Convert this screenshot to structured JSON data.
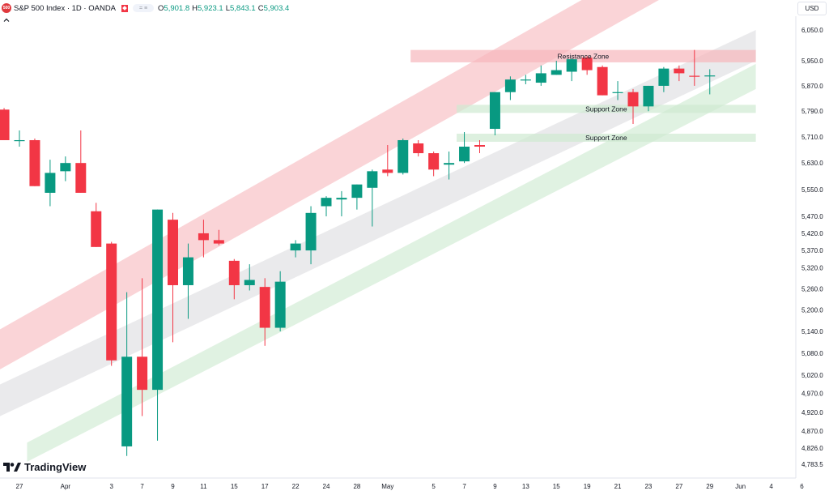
{
  "header": {
    "symbol_icon_text": "500",
    "title": "S&P 500 Index · 1D · OANDA",
    "ohlc": [
      {
        "k": "O",
        "v": "5,901.8"
      },
      {
        "k": "H",
        "v": "5,923.1"
      },
      {
        "k": "L",
        "v": "5,843.1"
      },
      {
        "k": "C",
        "v": "5,903.4"
      }
    ],
    "currency": "USD",
    "logo_text": "TradingView"
  },
  "colors": {
    "up": "#089981",
    "down": "#f23645",
    "resistance": "#f7b7bc",
    "support": "#cfe9d1",
    "channel_red": "#f8c6ca",
    "channel_gray": "#e3e3e5",
    "channel_green": "#d6eed8"
  },
  "chart_data": {
    "type": "candlestick",
    "title": "S&P 500 Index · 1D · OANDA",
    "y_axis": {
      "ticks": [
        6050.0,
        5950.0,
        5870.0,
        5790.0,
        5710.0,
        5630.0,
        5550.0,
        5470.0,
        5420.0,
        5370.0,
        5320.0,
        5260.0,
        5200.0,
        5140.0,
        5080.0,
        5020.0,
        4970.0,
        4920.0,
        4870.0,
        4826.0,
        4783.5
      ],
      "tick_labels": [
        "6,050.0",
        "5,950.0",
        "5,870.0",
        "5,790.0",
        "5,710.0",
        "5,630.0",
        "5,550.0",
        "5,470.0",
        "5,420.0",
        "5,370.0",
        "5,320.0",
        "5,260.0",
        "5,200.0",
        "5,140.0",
        "5,080.0",
        "5,020.0",
        "4,970.0",
        "4,920.0",
        "4,870.0",
        "4,826.0",
        "4,783.5"
      ],
      "scale": "log"
    },
    "x_axis": {
      "labels": [
        "27",
        "Apr",
        "3",
        "7",
        "9",
        "11",
        "15",
        "17",
        "22",
        "24",
        "28",
        "May",
        "5",
        "7",
        "9",
        "13",
        "15",
        "19",
        "21",
        "23",
        "27",
        "29",
        "Jun",
        "4",
        "6"
      ],
      "label_slots": [
        0,
        3,
        6,
        8,
        10,
        12,
        14,
        16,
        18,
        20,
        22,
        24,
        27,
        29,
        31,
        33,
        35,
        37,
        39,
        41,
        43,
        45,
        47,
        49,
        51
      ]
    },
    "candles": [
      {
        "slot": -1,
        "o": 5795,
        "h": 5800,
        "l": 5700,
        "c": 5700
      },
      {
        "slot": 0,
        "o": 5700,
        "h": 5730,
        "l": 5680,
        "c": 5700
      },
      {
        "slot": 1,
        "o": 5700,
        "h": 5705,
        "l": 5560,
        "c": 5560
      },
      {
        "slot": 2,
        "o": 5540,
        "h": 5640,
        "l": 5500,
        "c": 5600
      },
      {
        "slot": 3,
        "o": 5605,
        "h": 5650,
        "l": 5575,
        "c": 5630
      },
      {
        "slot": 4,
        "o": 5630,
        "h": 5730,
        "l": 5540,
        "c": 5540
      },
      {
        "slot": 5,
        "o": 5485,
        "h": 5510,
        "l": 5380,
        "c": 5380
      },
      {
        "slot": 6,
        "o": 5390,
        "h": 5395,
        "l": 5045,
        "c": 5060
      },
      {
        "slot": 7,
        "o": 4830,
        "h": 5250,
        "l": 4805,
        "c": 5070
      },
      {
        "slot": 8,
        "o": 5070,
        "h": 5290,
        "l": 4910,
        "c": 4980
      },
      {
        "slot": 9,
        "o": 4980,
        "h": 5490,
        "l": 4845,
        "c": 5490
      },
      {
        "slot": 10,
        "o": 5460,
        "h": 5480,
        "l": 5110,
        "c": 5270
      },
      {
        "slot": 11,
        "o": 5270,
        "h": 5390,
        "l": 5175,
        "c": 5350
      },
      {
        "slot": 12,
        "o": 5420,
        "h": 5460,
        "l": 5350,
        "c": 5400
      },
      {
        "slot": 13,
        "o": 5400,
        "h": 5430,
        "l": 5385,
        "c": 5390
      },
      {
        "slot": 14,
        "o": 5340,
        "h": 5345,
        "l": 5230,
        "c": 5270
      },
      {
        "slot": 15,
        "o": 5270,
        "h": 5330,
        "l": 5255,
        "c": 5285
      },
      {
        "slot": 16,
        "o": 5265,
        "h": 5290,
        "l": 5100,
        "c": 5150
      },
      {
        "slot": 17,
        "o": 5150,
        "h": 5310,
        "l": 5140,
        "c": 5280
      },
      {
        "slot": 18,
        "o": 5370,
        "h": 5400,
        "l": 5350,
        "c": 5390
      },
      {
        "slot": 19,
        "o": 5370,
        "h": 5500,
        "l": 5330,
        "c": 5480
      },
      {
        "slot": 20,
        "o": 5500,
        "h": 5530,
        "l": 5470,
        "c": 5525
      },
      {
        "slot": 21,
        "o": 5520,
        "h": 5545,
        "l": 5470,
        "c": 5525
      },
      {
        "slot": 22,
        "o": 5525,
        "h": 5565,
        "l": 5490,
        "c": 5565
      },
      {
        "slot": 23,
        "o": 5555,
        "h": 5610,
        "l": 5440,
        "c": 5605
      },
      {
        "slot": 24,
        "o": 5610,
        "h": 5685,
        "l": 5590,
        "c": 5600
      },
      {
        "slot": 25,
        "o": 5600,
        "h": 5705,
        "l": 5595,
        "c": 5700
      },
      {
        "slot": 26,
        "o": 5690,
        "h": 5700,
        "l": 5650,
        "c": 5660
      },
      {
        "slot": 27,
        "o": 5660,
        "h": 5665,
        "l": 5590,
        "c": 5610
      },
      {
        "slot": 28,
        "o": 5625,
        "h": 5665,
        "l": 5580,
        "c": 5630
      },
      {
        "slot": 29,
        "o": 5635,
        "h": 5725,
        "l": 5630,
        "c": 5680
      },
      {
        "slot": 30,
        "o": 5685,
        "h": 5700,
        "l": 5660,
        "c": 5680
      },
      {
        "slot": 31,
        "o": 5735,
        "h": 5850,
        "l": 5715,
        "c": 5850
      },
      {
        "slot": 32,
        "o": 5850,
        "h": 5900,
        "l": 5825,
        "c": 5890
      },
      {
        "slot": 33,
        "o": 5890,
        "h": 5905,
        "l": 5875,
        "c": 5890
      },
      {
        "slot": 34,
        "o": 5880,
        "h": 5935,
        "l": 5870,
        "c": 5910
      },
      {
        "slot": 35,
        "o": 5905,
        "h": 5950,
        "l": 5905,
        "c": 5920
      },
      {
        "slot": 36,
        "o": 5915,
        "h": 5960,
        "l": 5885,
        "c": 5955
      },
      {
        "slot": 37,
        "o": 5960,
        "h": 5965,
        "l": 5905,
        "c": 5920
      },
      {
        "slot": 38,
        "o": 5930,
        "h": 5935,
        "l": 5840,
        "c": 5840
      },
      {
        "slot": 39,
        "o": 5850,
        "h": 5885,
        "l": 5825,
        "c": 5850
      },
      {
        "slot": 40,
        "o": 5850,
        "h": 5860,
        "l": 5750,
        "c": 5805
      },
      {
        "slot": 41,
        "o": 5805,
        "h": 5870,
        "l": 5790,
        "c": 5870
      },
      {
        "slot": 42,
        "o": 5870,
        "h": 5930,
        "l": 5850,
        "c": 5925
      },
      {
        "slot": 43,
        "o": 5925,
        "h": 5935,
        "l": 5885,
        "c": 5910
      },
      {
        "slot": 44,
        "o": 5902,
        "h": 5985,
        "l": 5870,
        "c": 5900
      },
      {
        "slot": 45,
        "o": 5902,
        "h": 5923,
        "l": 5843,
        "c": 5903
      }
    ],
    "zones": [
      {
        "label": "Resistance Zone",
        "kind": "resistance",
        "from_slot": 25.5,
        "to_slot": 48,
        "low": 5945,
        "high": 5985
      },
      {
        "label": "Support Zone",
        "kind": "support",
        "from_slot": 28.5,
        "to_slot": 48,
        "low": 5795,
        "high": 5810
      },
      {
        "label": "Support Zone",
        "kind": "support",
        "from_slot": 28.5,
        "to_slot": 48,
        "low": 5705,
        "high": 5720
      }
    ],
    "channels": [
      {
        "kind": "red",
        "start_slot": -1.5,
        "end_slot": 44.5,
        "start_low": 5030,
        "start_high": 5140,
        "end_low": 6230,
        "end_high": 6380
      },
      {
        "kind": "gray",
        "start_slot": -1.5,
        "end_slot": 48,
        "start_low": 4905,
        "start_high": 4990,
        "end_low": 5950,
        "end_high": 6050
      },
      {
        "kind": "green",
        "start_slot": 0.5,
        "end_slot": 48,
        "start_low": 4790,
        "start_high": 4840,
        "end_low": 5860,
        "end_high": 5940
      }
    ]
  }
}
